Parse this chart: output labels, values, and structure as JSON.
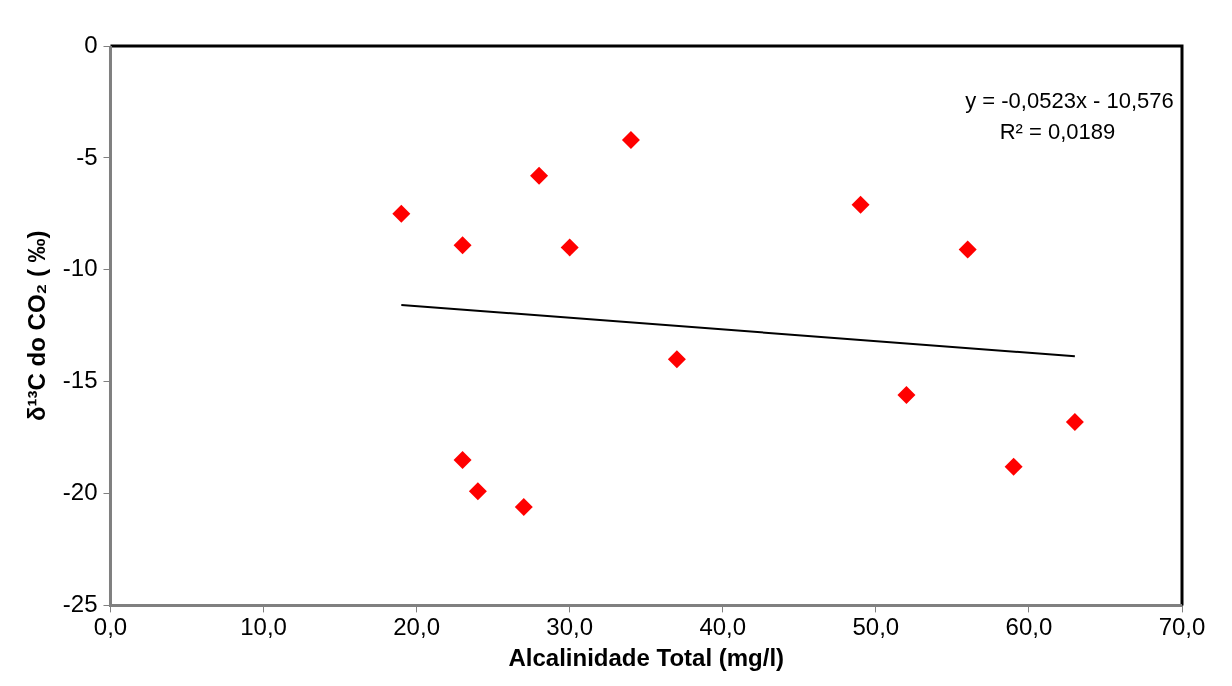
{
  "chart_data": {
    "type": "scatter",
    "xlabel": "Alcalinidade Total (mg/l)",
    "ylabel": "δ¹³C do CO₂ ( ‰)",
    "series": [
      {
        "color": "#ff0000",
        "marker": "diamond",
        "x": [
          19,
          23,
          28,
          34,
          30,
          49,
          56,
          37,
          52,
          63,
          23,
          24,
          27,
          59
        ],
        "values": [
          -7.5,
          -8.9,
          -5.8,
          -4.2,
          -9.0,
          -7.1,
          -9.1,
          -14.0,
          -15.6,
          -16.8,
          -18.5,
          -19.9,
          -20.6,
          -18.8
        ]
      },
      {
        "type": "line",
        "color": "#000000",
        "marker": "none",
        "line_style": "solid",
        "x": [
          19,
          63
        ],
        "values": [
          -11.57,
          -13.87
        ]
      }
    ],
    "xlim": [
      0,
      70
    ],
    "xticks": [
      {
        "value": 0,
        "label": "0,0"
      },
      {
        "value": 10,
        "label": "10,0"
      },
      {
        "value": 20,
        "label": "20,0"
      },
      {
        "value": 30,
        "label": "30,0"
      },
      {
        "value": 40,
        "label": "40,0"
      },
      {
        "value": 50,
        "label": "50,0"
      },
      {
        "value": 60,
        "label": "60,0"
      },
      {
        "value": 70,
        "label": "70,0"
      }
    ],
    "ylim": [
      -25,
      0
    ],
    "yticks": [
      -25,
      -20,
      -15,
      -10,
      -5,
      0
    ],
    "grid": false,
    "legend": false,
    "annotations": [
      "y = -0,0523x - 10,576",
      "R² = 0,0189"
    ]
  }
}
